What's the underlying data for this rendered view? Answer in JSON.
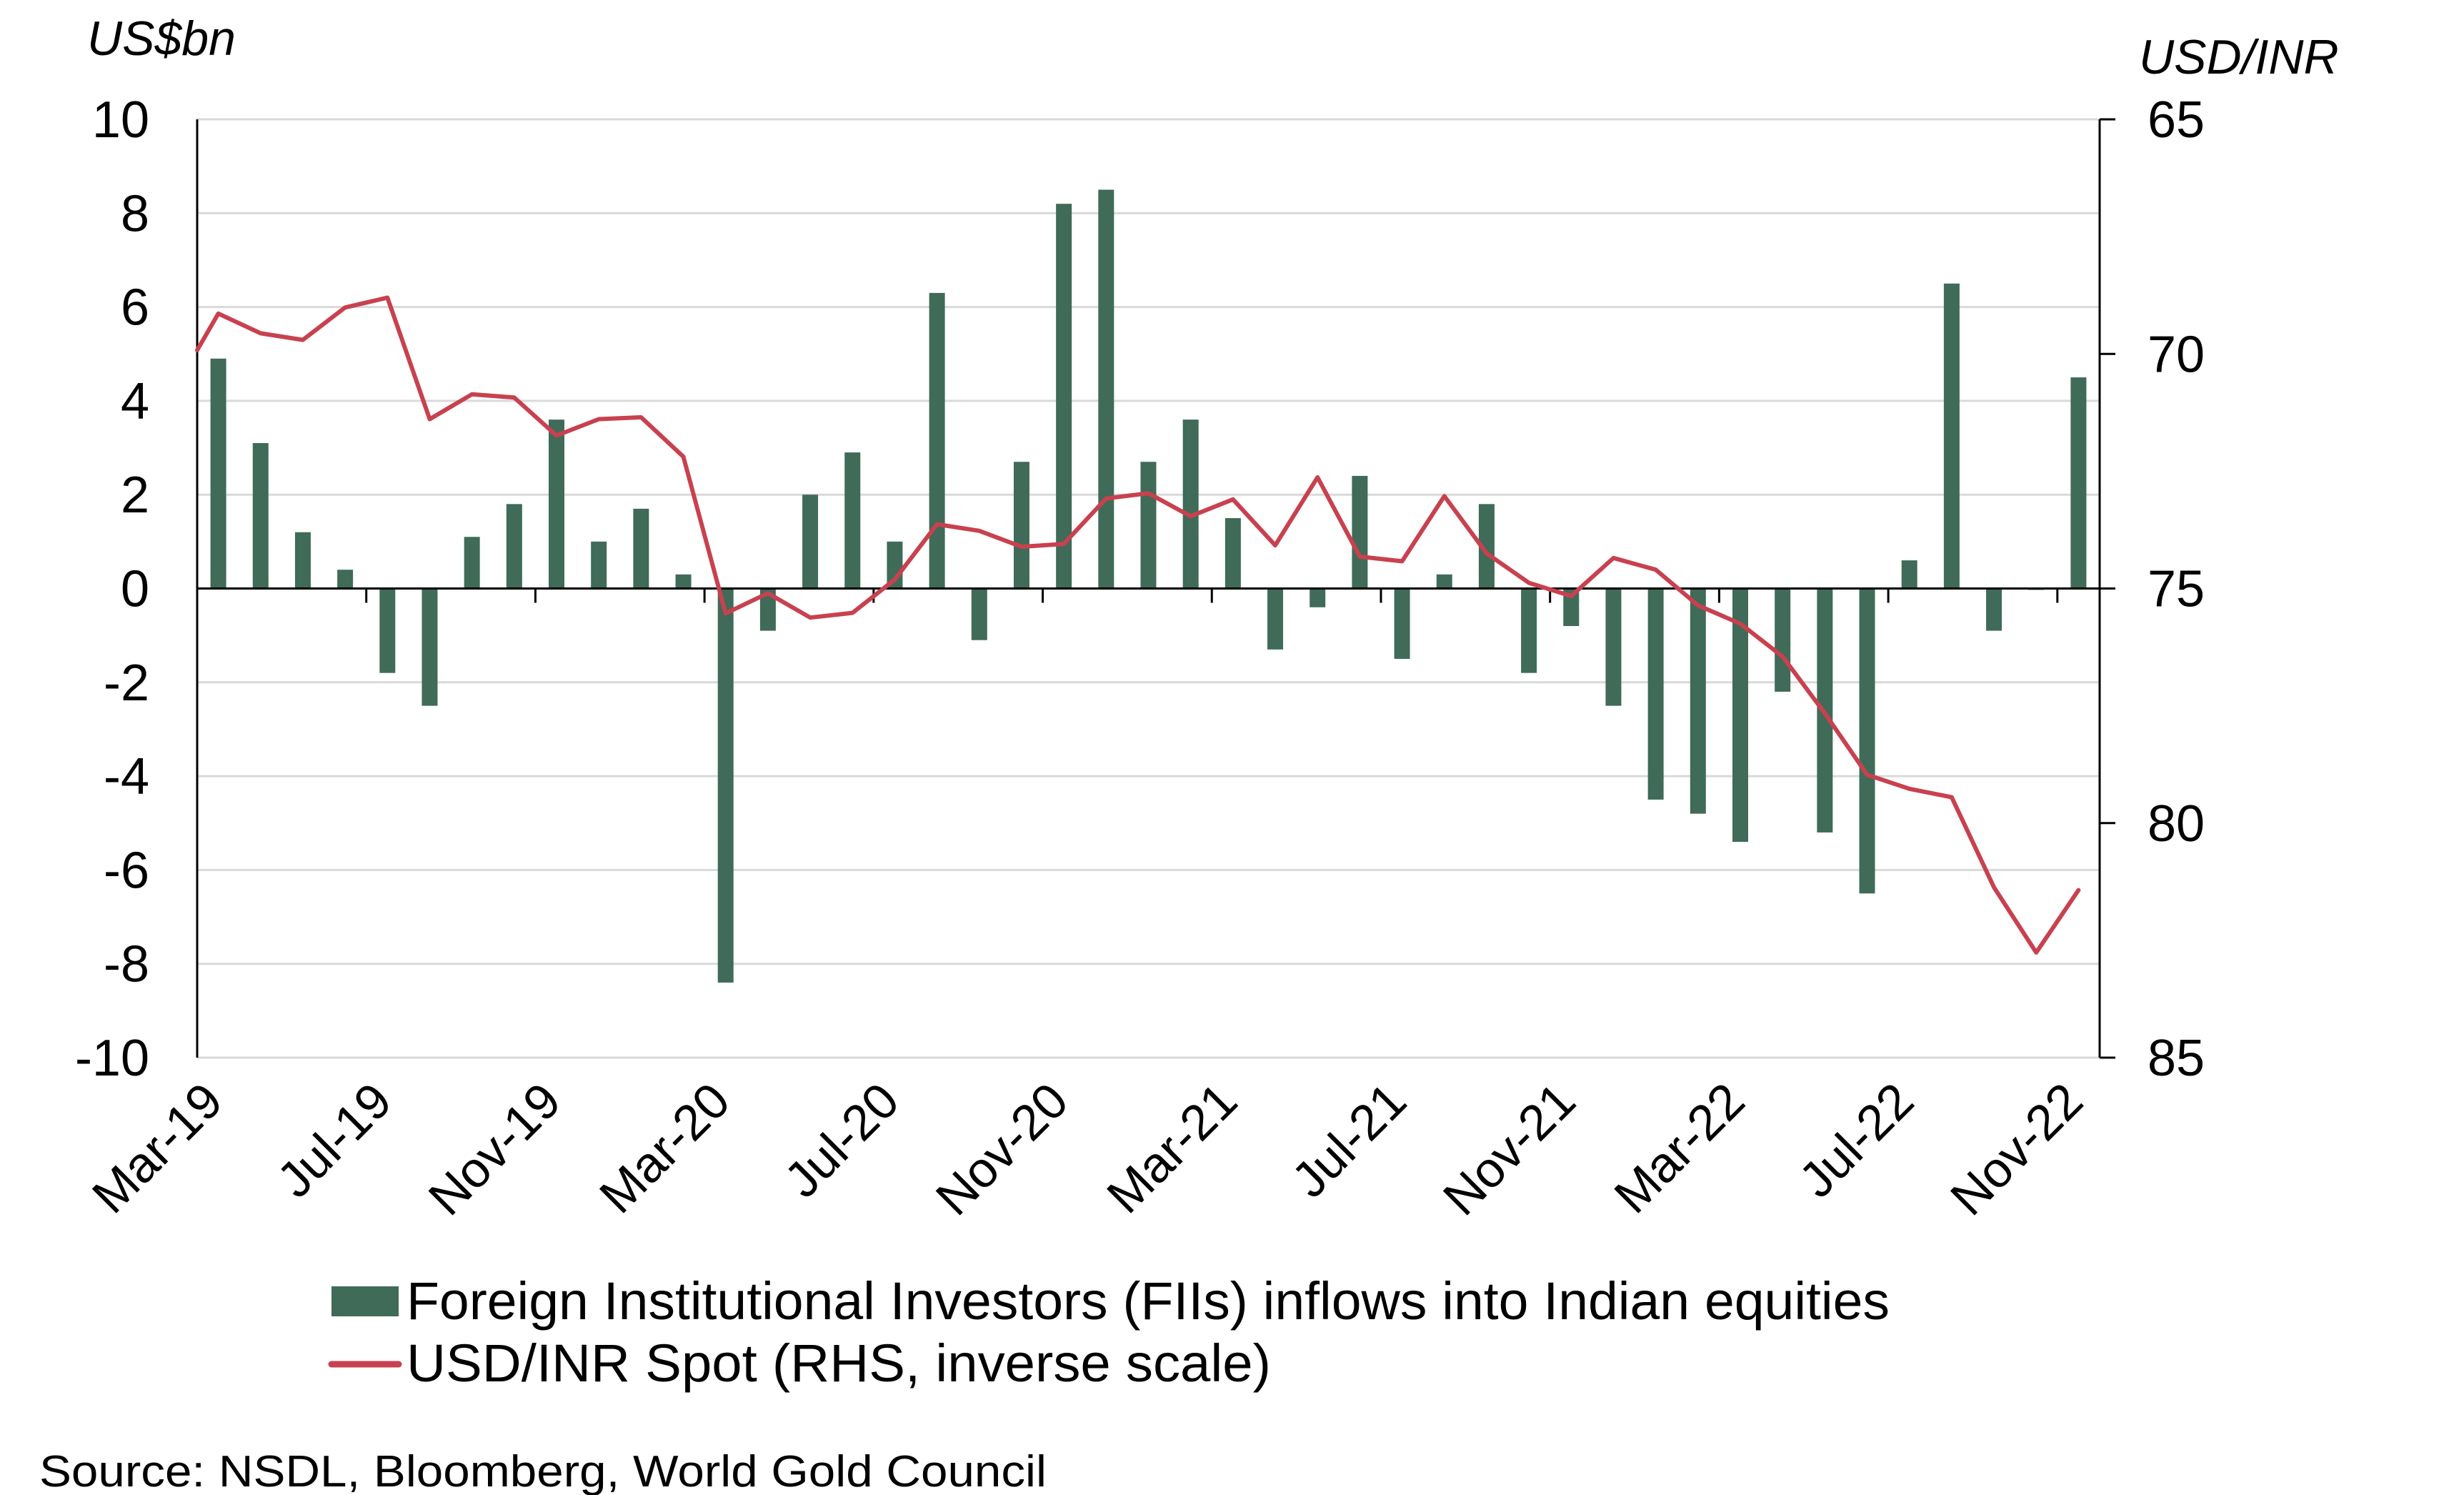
{
  "chart_data": {
    "type": "bar",
    "combo": "bar + line (secondary inverted axis)",
    "title": "",
    "left_axis": {
      "label": "US$bn",
      "range": [
        -10,
        10
      ],
      "ticks": [
        10,
        8,
        6,
        4,
        2,
        0,
        -2,
        -4,
        -6,
        -8,
        -10
      ],
      "tick_labels": [
        "10",
        "8",
        "6",
        "4",
        "2",
        "0",
        "-2",
        "-4",
        "-6",
        "-8",
        "-10"
      ]
    },
    "right_axis": {
      "label": "USD/INR",
      "range": [
        65,
        85
      ],
      "inverted": true,
      "ticks": [
        65,
        70,
        75,
        80,
        85
      ],
      "tick_labels": [
        "65",
        "70",
        "75",
        "80",
        "85"
      ]
    },
    "grid": true,
    "categories": [
      "Mar-19",
      "Apr-19",
      "May-19",
      "Jun-19",
      "Jul-19",
      "Aug-19",
      "Sep-19",
      "Oct-19",
      "Nov-19",
      "Dec-19",
      "Jan-20",
      "Feb-20",
      "Mar-20",
      "Apr-20",
      "May-20",
      "Jun-20",
      "Jul-20",
      "Aug-20",
      "Sep-20",
      "Oct-20",
      "Nov-20",
      "Dec-20",
      "Jan-21",
      "Feb-21",
      "Mar-21",
      "Apr-21",
      "May-21",
      "Jun-21",
      "Jul-21",
      "Aug-21",
      "Sep-21",
      "Oct-21",
      "Nov-21",
      "Dec-21",
      "Jan-22",
      "Feb-22",
      "Mar-22",
      "Apr-22",
      "May-22",
      "Jun-22",
      "Jul-22",
      "Aug-22",
      "Sep-22",
      "Oct-22",
      "Nov-22"
    ],
    "x_tick_labels": [
      "Mar-19",
      "Jul-19",
      "Nov-19",
      "Mar-20",
      "Jul-20",
      "Nov-20",
      "Mar-21",
      "Jul-21",
      "Nov-21",
      "Mar-22",
      "Jul-22",
      "Nov-22"
    ],
    "x_label_every": 4,
    "series": [
      {
        "name": "Foreign Institutional Investors (FIIs) inflows into Indian equities",
        "type": "bar",
        "axis": "left",
        "color": "#3f6b58",
        "values": [
          4.9,
          3.1,
          1.2,
          0.4,
          -1.8,
          -2.5,
          1.1,
          1.8,
          3.6,
          1.0,
          1.7,
          0.3,
          -8.4,
          -0.9,
          2.0,
          2.9,
          1.0,
          6.3,
          -1.1,
          2.7,
          8.2,
          8.5,
          2.7,
          3.6,
          1.5,
          -1.3,
          -0.4,
          2.4,
          -1.5,
          0.3,
          1.8,
          -1.8,
          -0.8,
          -2.5,
          -4.5,
          -4.8,
          -5.4,
          -2.2,
          -5.2,
          -6.5,
          0.6,
          6.5,
          -0.9,
          -0.03,
          4.5
        ]
      },
      {
        "name": "USD/INR Spot (RHS, inverse scale)",
        "type": "line",
        "axis": "right",
        "color": "#c8414f",
        "start_value": 69.92,
        "values": [
          69.14,
          69.56,
          69.7,
          69.01,
          68.8,
          71.39,
          70.86,
          70.93,
          71.74,
          71.39,
          71.35,
          72.19,
          75.53,
          75.1,
          75.62,
          75.52,
          74.81,
          73.63,
          73.77,
          74.11,
          74.05,
          73.08,
          72.97,
          73.46,
          73.1,
          74.08,
          72.63,
          74.32,
          74.42,
          73.03,
          74.25,
          74.88,
          75.16,
          74.35,
          74.6,
          75.36,
          75.75,
          76.45,
          77.66,
          78.97,
          79.27,
          79.45,
          81.37,
          82.76,
          81.43
        ]
      }
    ],
    "legend": {
      "placement": "bottom",
      "entries": [
        "Foreign Institutional Investors (FIIs) inflows into Indian equities",
        "USD/INR Spot (RHS, inverse scale)"
      ]
    },
    "source": "Source: NSDL, Bloomberg, World Gold Council"
  }
}
